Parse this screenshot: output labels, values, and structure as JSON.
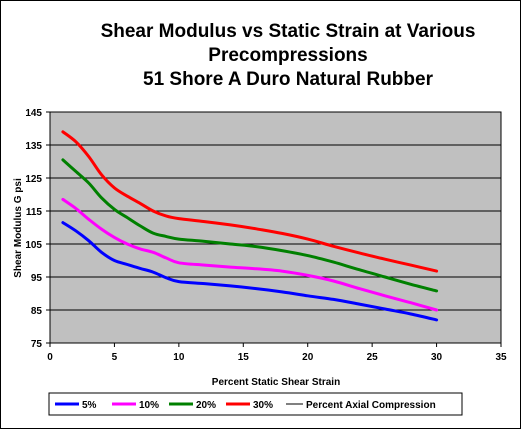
{
  "chart_data": {
    "type": "line",
    "title_lines": [
      "Shear Modulus vs Static Strain at Various",
      "Precompressions",
      "51 Shore A Duro Natural Rubber"
    ],
    "xlabel": "Percent Static Shear Strain",
    "ylabel": "Shear Modulus G  psi",
    "xlim": [
      0,
      35
    ],
    "ylim": [
      75,
      145
    ],
    "xticks": [
      0,
      5,
      10,
      15,
      20,
      25,
      30,
      35
    ],
    "yticks": [
      75,
      85,
      95,
      105,
      115,
      125,
      135,
      145
    ],
    "grid": "horizontal major gridlines",
    "plot_background": "#c0c0c0",
    "legend_position": "bottom",
    "legend_title": "Percent Axial Compression",
    "series": [
      {
        "name": "5%",
        "color": "#0000ff",
        "x": [
          1,
          2,
          3,
          4,
          5,
          6,
          7,
          8,
          9,
          10,
          12,
          14,
          16,
          18,
          20,
          22,
          24,
          26,
          28,
          30
        ],
        "values": [
          111.5,
          109,
          106,
          102.5,
          100,
          98.8,
          97.6,
          96.5,
          94.8,
          93.6,
          93,
          92.3,
          91.5,
          90.5,
          89.3,
          88.2,
          86.8,
          85.3,
          83.8,
          82
        ]
      },
      {
        "name": "10%",
        "color": "#ff00ff",
        "x": [
          1,
          2,
          3,
          4,
          5,
          6,
          7,
          8,
          9,
          10,
          12,
          14,
          16,
          18,
          20,
          22,
          24,
          26,
          28,
          30
        ],
        "values": [
          118.5,
          115.8,
          112.5,
          109.5,
          107,
          105,
          103.5,
          102.5,
          100.8,
          99.3,
          98.6,
          98,
          97.5,
          96.8,
          95.5,
          93.8,
          91.5,
          89.3,
          87.2,
          85
        ]
      },
      {
        "name": "20%",
        "color": "#008000",
        "x": [
          1,
          2,
          3,
          4,
          5,
          6,
          7,
          8,
          9,
          10,
          12,
          14,
          16,
          18,
          20,
          22,
          24,
          26,
          28,
          30
        ],
        "values": [
          130.5,
          127,
          123.5,
          119,
          115.5,
          113,
          110.5,
          108.3,
          107.3,
          106.5,
          105.8,
          105,
          104.2,
          103,
          101.5,
          99.5,
          97.2,
          95,
          92.8,
          90.8
        ]
      },
      {
        "name": "30%",
        "color": "#ff0000",
        "x": [
          1,
          2,
          3,
          4,
          5,
          6,
          7,
          8,
          9,
          10,
          12,
          14,
          16,
          18,
          20,
          22,
          24,
          26,
          28,
          30
        ],
        "values": [
          139,
          136,
          131.5,
          126,
          122,
          119.5,
          117.3,
          115,
          113.5,
          112.7,
          111.8,
          110.8,
          109.6,
          108.2,
          106.5,
          104.3,
          102.3,
          100.4,
          98.6,
          96.8
        ]
      }
    ]
  }
}
